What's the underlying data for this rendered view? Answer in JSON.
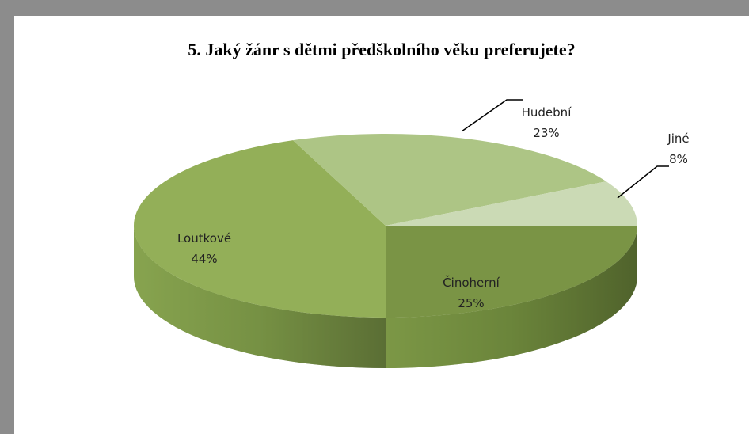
{
  "chart_data": {
    "type": "pie",
    "title": "5. Jaký žánr s dětmi předškolního věku preferujete?",
    "categories": [
      "Činoherní",
      "Loutkové",
      "Hudební",
      "Jiné"
    ],
    "values": [
      25,
      44,
      23,
      8
    ],
    "value_labels": [
      "25%",
      "44%",
      "23%",
      "8%"
    ],
    "colors": [
      "#7a9445",
      "#93af58",
      "#adc585",
      "#cbdab5"
    ]
  }
}
